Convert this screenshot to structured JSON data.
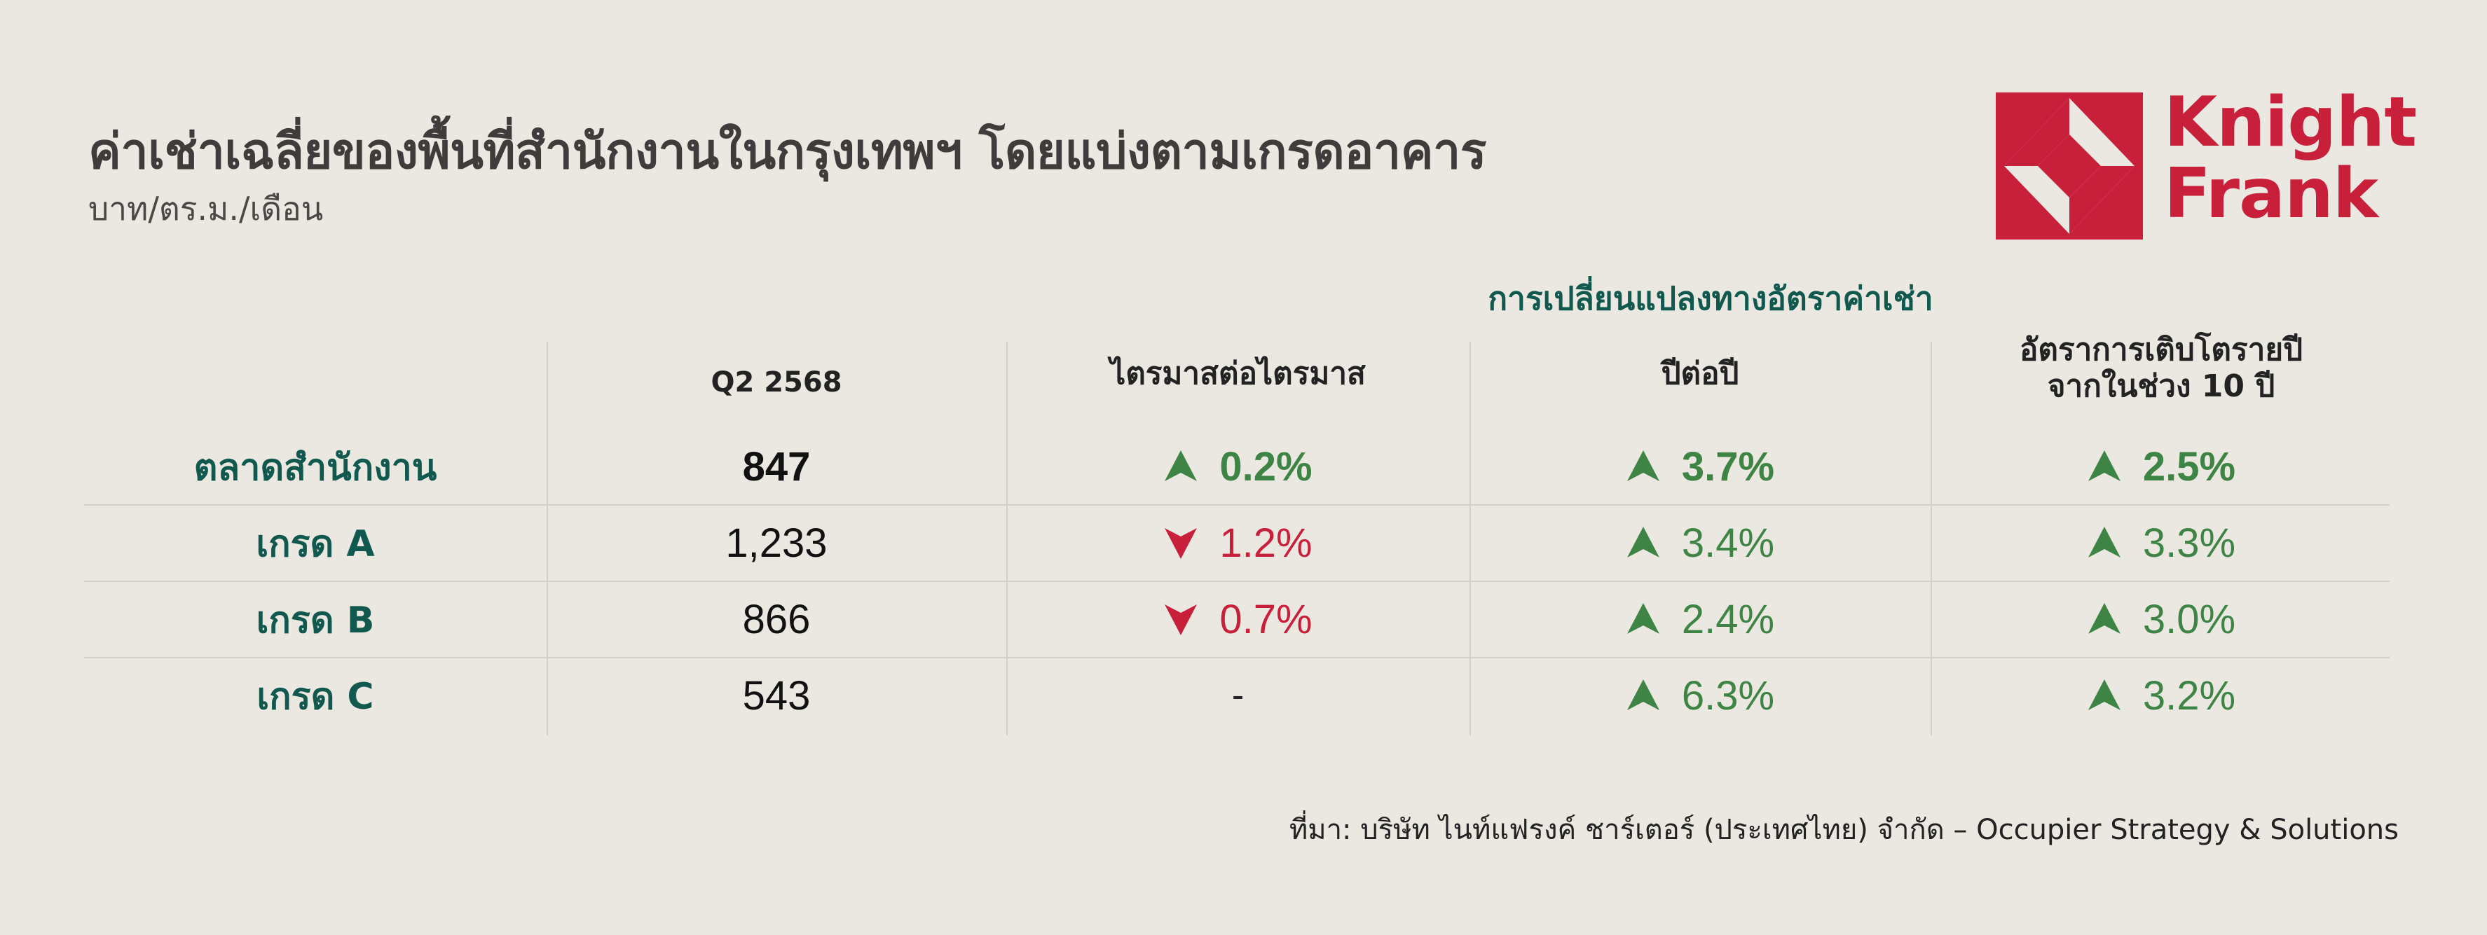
{
  "header": {
    "title": "ค่าเช่าเฉลี่ยของพื้นที่สำนักงานในกรุงเทพฯ โดยแบ่งตามเกรดอาคาร",
    "subtitle": "บาท/ตร.ม./เดือน"
  },
  "logo": {
    "line1": "Knight",
    "line2": "Frank",
    "brand_color": "#C8203B"
  },
  "table": {
    "group_header": "การเปลี่ยนแปลงทางอัตราค่าเช่า",
    "columns": {
      "period": "Q2 2568",
      "qoq": "ไตรมาสต่อไตรมาส",
      "yoy": "ปีต่อปี",
      "cagr_line1": "อัตราการเติบโตรายปี",
      "cagr_line2": "จากในช่วง 10 ปี"
    },
    "rows": [
      {
        "label": "ตลาดสำนักงาน",
        "rent": "847",
        "qoq": "0.2%",
        "qoq_dir": "up",
        "yoy": "3.7%",
        "yoy_dir": "up",
        "cagr": "2.5%",
        "cagr_dir": "up"
      },
      {
        "label": "เกรด A",
        "rent": "1,233",
        "qoq": "1.2%",
        "qoq_dir": "down",
        "yoy": "3.4%",
        "yoy_dir": "up",
        "cagr": "3.3%",
        "cagr_dir": "up"
      },
      {
        "label": "เกรด B",
        "rent": "866",
        "qoq": "0.7%",
        "qoq_dir": "down",
        "yoy": "2.4%",
        "yoy_dir": "up",
        "cagr": "3.0%",
        "cagr_dir": "up"
      },
      {
        "label": "เกรด C",
        "rent": "543",
        "qoq": "-",
        "qoq_dir": "none",
        "yoy": "6.3%",
        "yoy_dir": "up",
        "cagr": "3.2%",
        "cagr_dir": "up"
      }
    ]
  },
  "colors": {
    "background": "#EAE8E1",
    "label_green": "#11584E",
    "positive": "#3E8444",
    "negative": "#C8203B"
  },
  "source": "ที่มา: บริษัท ไนท์แฟรงค์ ชาร์เตอร์ (ประเทศไทย) จำกัด – Occupier Strategy & Solutions"
}
